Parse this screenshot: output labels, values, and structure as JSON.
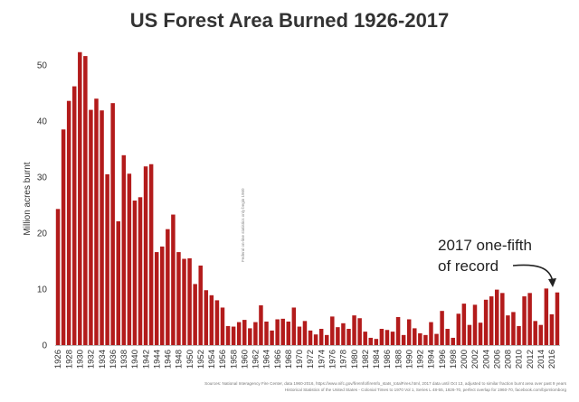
{
  "chart_data": {
    "type": "bar",
    "title": "US Forest Area Burned 1926-2017",
    "ylabel": "Million acres burnt",
    "ylim": [
      0,
      55
    ],
    "yticks": [
      0,
      10,
      20,
      30,
      40,
      50
    ],
    "grid": false,
    "bar_color": "#b31b1b",
    "x": [
      1926,
      1927,
      1928,
      1929,
      1930,
      1931,
      1932,
      1933,
      1934,
      1935,
      1936,
      1937,
      1938,
      1939,
      1940,
      1941,
      1942,
      1943,
      1944,
      1945,
      1946,
      1947,
      1948,
      1949,
      1950,
      1951,
      1952,
      1953,
      1954,
      1955,
      1956,
      1957,
      1958,
      1959,
      1960,
      1961,
      1962,
      1963,
      1964,
      1965,
      1966,
      1967,
      1968,
      1969,
      1970,
      1971,
      1972,
      1973,
      1974,
      1975,
      1976,
      1977,
      1978,
      1979,
      1980,
      1981,
      1982,
      1983,
      1984,
      1985,
      1986,
      1987,
      1988,
      1989,
      1990,
      1991,
      1992,
      1993,
      1994,
      1995,
      1996,
      1997,
      1998,
      1999,
      2000,
      2001,
      2002,
      2003,
      2004,
      2005,
      2006,
      2007,
      2008,
      2009,
      2010,
      2011,
      2012,
      2013,
      2014,
      2015,
      2016,
      2017
    ],
    "values": [
      24.3,
      38.5,
      43.6,
      46.2,
      52.3,
      51.6,
      42.0,
      44.0,
      41.9,
      30.5,
      43.2,
      22.1,
      33.9,
      30.6,
      25.8,
      26.4,
      31.9,
      32.3,
      16.6,
      17.6,
      20.7,
      23.3,
      16.6,
      15.4,
      15.5,
      10.9,
      14.2,
      9.8,
      8.9,
      8.0,
      6.7,
      3.4,
      3.3,
      4.1,
      4.5,
      3.0,
      4.1,
      7.1,
      4.2,
      2.6,
      4.6,
      4.7,
      4.2,
      6.7,
      3.3,
      4.3,
      2.6,
      1.9,
      2.9,
      1.8,
      5.1,
      3.2,
      3.9,
      2.9,
      5.3,
      4.8,
      2.4,
      1.3,
      1.1,
      2.9,
      2.7,
      2.4,
      5.0,
      1.8,
      4.6,
      3.0,
      2.1,
      1.8,
      4.1,
      2.0,
      6.1,
      2.9,
      1.3,
      5.6,
      7.4,
      3.6,
      7.2,
      4.0,
      8.1,
      8.7,
      9.9,
      9.3,
      5.3,
      5.9,
      3.4,
      8.7,
      9.3,
      4.3,
      3.6,
      10.1,
      5.5,
      9.4
    ],
    "xtick_labels": [
      "1926",
      "1928",
      "1930",
      "1932",
      "1934",
      "1936",
      "1938",
      "1940",
      "1942",
      "1944",
      "1946",
      "1948",
      "1950",
      "1952",
      "1954",
      "1956",
      "1958",
      "1960",
      "1962",
      "1964",
      "1966",
      "1968",
      "1970",
      "1972",
      "1974",
      "1976",
      "1978",
      "1980",
      "1982",
      "1984",
      "1986",
      "1988",
      "1990",
      "1992",
      "1994",
      "1996",
      "1998",
      "2000",
      "2002",
      "2004",
      "2006",
      "2008",
      "2010",
      "2012",
      "2014",
      "2016"
    ],
    "annotation_line1": "2017 one-fifth",
    "annotation_line2": "of record",
    "vertical_note": "Federal on-line statistics only begin 1960",
    "source_line1": "Sources: National Interagency Fire Center, data 1960-2016, https://www.nifc.gov/fireInfo/fireInfo_stats_totalFires.html, 2017 data until Oct 13, adjusted to similar fraction burnt area over past 9 years",
    "source_line2": "Historical Statistics of the United States - Colonial Times to 1970 Vol 1, Series L 48-55, 1926-70, perfect overlap for 1960-70, facebook.com/bjornlomborg"
  }
}
